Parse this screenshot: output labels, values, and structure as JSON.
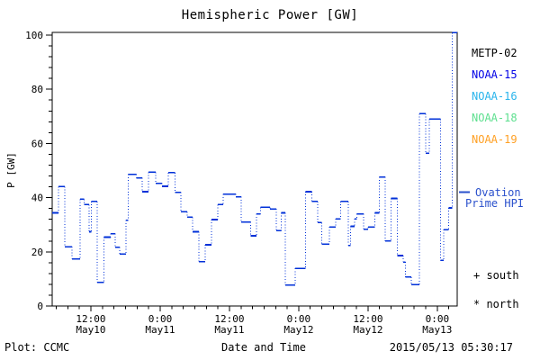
{
  "chart_data": {
    "type": "line",
    "title": "Hemispheric Power [GW]",
    "xlabel": "Date and Time",
    "ylabel": "P [GW]",
    "ylim": [
      0,
      100
    ],
    "y_major_ticks": [
      0,
      20,
      40,
      60,
      80,
      100
    ],
    "y_minor_step": 4,
    "grid": false,
    "x_range_hours_from_may10_00": [
      5.3,
      75.45
    ],
    "x_minor_step_hours": 2,
    "x_major_ticks": [
      {
        "t": 12,
        "time": "12:00",
        "date": "May10"
      },
      {
        "t": 24,
        "time": "0:00",
        "date": "May11"
      },
      {
        "t": 36,
        "time": "12:00",
        "date": "May11"
      },
      {
        "t": 48,
        "time": "0:00",
        "date": "May12"
      },
      {
        "t": 60,
        "time": "12:00",
        "date": "May12"
      },
      {
        "t": 72,
        "time": "0:00",
        "date": "May13"
      }
    ],
    "series": [
      {
        "name": "Ovation Prime HPI",
        "color": "#0030d8",
        "style": "step-solid-horizontal-dotted-vertical",
        "points": [
          [
            5.3,
            34.4
          ],
          [
            6.4,
            44.1
          ],
          [
            7.5,
            21.9
          ],
          [
            8.7,
            17.4
          ],
          [
            10.1,
            39.4
          ],
          [
            10.8,
            37.4
          ],
          [
            11.7,
            27.4
          ],
          [
            12.1,
            38.6
          ],
          [
            13.1,
            8.7
          ],
          [
            14.3,
            25.4
          ],
          [
            15.4,
            26.7
          ],
          [
            16.2,
            21.7
          ],
          [
            17.0,
            19.2
          ],
          [
            18.1,
            31.7
          ],
          [
            18.5,
            48.6
          ],
          [
            19.9,
            47.3
          ],
          [
            20.9,
            42.2
          ],
          [
            22.0,
            49.4
          ],
          [
            23.2,
            45.3
          ],
          [
            24.3,
            44.2
          ],
          [
            25.4,
            49.2
          ],
          [
            26.6,
            42.0
          ],
          [
            27.6,
            34.8
          ],
          [
            28.7,
            32.8
          ],
          [
            29.6,
            27.4
          ],
          [
            30.7,
            16.3
          ],
          [
            31.8,
            22.6
          ],
          [
            32.9,
            31.9
          ],
          [
            34.0,
            37.4
          ],
          [
            34.9,
            41.3
          ],
          [
            37.1,
            40.3
          ],
          [
            38.0,
            31.0
          ],
          [
            39.7,
            25.9
          ],
          [
            40.7,
            34.0
          ],
          [
            41.4,
            36.4
          ],
          [
            43.0,
            35.8
          ],
          [
            44.1,
            27.8
          ],
          [
            45.0,
            34.4
          ],
          [
            45.7,
            7.7
          ],
          [
            47.4,
            13.9
          ],
          [
            49.2,
            42.2
          ],
          [
            50.3,
            38.6
          ],
          [
            51.3,
            30.8
          ],
          [
            52.0,
            22.8
          ],
          [
            53.3,
            29.2
          ],
          [
            54.4,
            32.2
          ],
          [
            55.3,
            38.6
          ],
          [
            56.6,
            22.4
          ],
          [
            57.0,
            29.4
          ],
          [
            57.7,
            32.2
          ],
          [
            58.1,
            34.0
          ],
          [
            59.2,
            28.3
          ],
          [
            60.0,
            29.1
          ],
          [
            61.2,
            34.4
          ],
          [
            62.0,
            47.6
          ],
          [
            63.0,
            24.0
          ],
          [
            64.0,
            39.7
          ],
          [
            65.1,
            18.6
          ],
          [
            66.1,
            16.2
          ],
          [
            66.5,
            10.7
          ],
          [
            67.5,
            7.9
          ],
          [
            68.9,
            71.0
          ],
          [
            70.0,
            56.4
          ],
          [
            70.6,
            69.0
          ],
          [
            72.6,
            16.8
          ],
          [
            73.1,
            28.2
          ],
          [
            74.0,
            36.2
          ],
          [
            74.6,
            100.9
          ]
        ]
      }
    ]
  },
  "legend": {
    "satellites": [
      {
        "label": "METP-02",
        "color": "#000000"
      },
      {
        "label": "NOAA-15",
        "color": "#0000e6"
      },
      {
        "label": "NOAA-16",
        "color": "#28b4ec"
      },
      {
        "label": "NOAA-18",
        "color": "#5cdf8e"
      },
      {
        "label": "NOAA-19",
        "color": "#ffa024"
      }
    ],
    "ovation": {
      "line1": "Ovation",
      "line2": "Prime HPI",
      "color": "#2a50cc"
    },
    "markers": {
      "south": "+ south",
      "north": "* north"
    }
  },
  "footer": {
    "left": "Plot: CCMC",
    "timestamp": "2015/05/13 05:30:17"
  }
}
